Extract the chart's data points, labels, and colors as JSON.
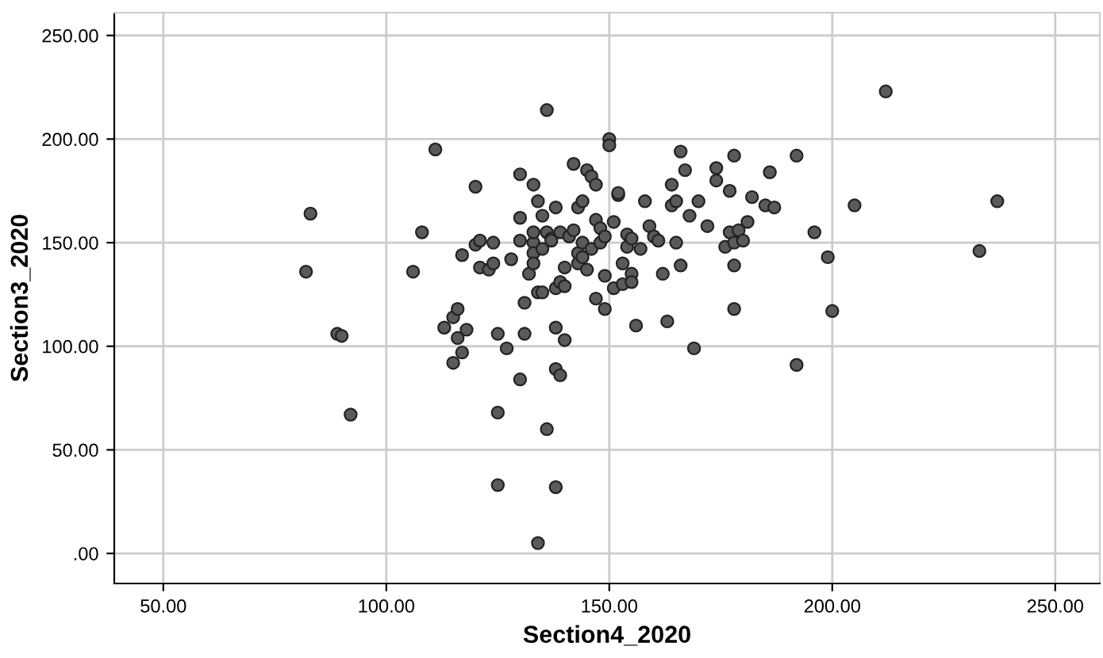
{
  "chart_data": {
    "type": "scatter",
    "xlabel": "Section4_2020",
    "ylabel": "Section3_2020",
    "x": [
      82,
      83,
      89,
      90,
      92,
      106,
      108,
      111,
      113,
      115,
      115,
      116,
      116,
      117,
      118,
      117,
      120,
      120,
      121,
      121,
      123,
      124,
      124,
      125,
      125,
      125,
      127,
      128,
      130,
      130,
      130,
      130,
      131,
      131,
      132,
      133,
      133,
      133,
      133,
      133,
      134,
      134,
      134,
      135,
      135,
      135,
      136,
      136,
      136,
      137,
      137,
      138,
      138,
      138,
      138,
      138,
      139,
      139,
      139,
      140,
      140,
      140,
      141,
      142,
      142,
      143,
      143,
      143,
      144,
      144,
      144,
      145,
      145,
      146,
      146,
      147,
      147,
      147,
      148,
      148,
      149,
      149,
      149,
      150,
      150,
      151,
      151,
      152,
      152,
      153,
      153,
      154,
      154,
      155,
      155,
      155,
      156,
      157,
      158,
      159,
      160,
      161,
      162,
      163,
      164,
      164,
      165,
      165,
      166,
      166,
      167,
      168,
      169,
      170,
      172,
      174,
      174,
      176,
      177,
      177,
      178,
      178,
      178,
      178,
      179,
      180,
      181,
      182,
      185,
      186,
      187,
      192,
      192,
      196,
      199,
      200,
      205,
      212,
      233,
      237
    ],
    "values": [
      136,
      164,
      106,
      105,
      67,
      136,
      155,
      195,
      109,
      92,
      114,
      118,
      104,
      97,
      108,
      144,
      149,
      177,
      138,
      151,
      137,
      150,
      140,
      106,
      68,
      33,
      99,
      142,
      162,
      151,
      183,
      84,
      121,
      106,
      135,
      150,
      178,
      155,
      145,
      140,
      170,
      126,
      5,
      163,
      147,
      126,
      214,
      60,
      155,
      152,
      151,
      32,
      128,
      89,
      109,
      167,
      155,
      131,
      86,
      138,
      103,
      129,
      153,
      188,
      156,
      167,
      145,
      140,
      170,
      150,
      143,
      185,
      137,
      147,
      182,
      161,
      178,
      123,
      157,
      150,
      134,
      118,
      153,
      200,
      197,
      160,
      128,
      173,
      174,
      140,
      130,
      154,
      148,
      152,
      135,
      131,
      110,
      147,
      170,
      158,
      153,
      151,
      135,
      112,
      178,
      168,
      150,
      170,
      194,
      139,
      185,
      163,
      99,
      170,
      158,
      186,
      180,
      148,
      155,
      175,
      192,
      139,
      118,
      150,
      156,
      151,
      160,
      172,
      168,
      184,
      167,
      192,
      91,
      155,
      143,
      117,
      168,
      223,
      146,
      170
    ],
    "color": "#5a5a5a",
    "marker": "circle",
    "grid": true,
    "xlim": [
      39,
      260
    ],
    "ylim": [
      -14.5,
      261
    ],
    "xticks": [
      {
        "value": 50,
        "label": "50.00"
      },
      {
        "value": 100,
        "label": "100.00"
      },
      {
        "value": 150,
        "label": "150.00"
      },
      {
        "value": 200,
        "label": "200.00"
      },
      {
        "value": 250,
        "label": "250.00"
      }
    ],
    "yticks": [
      {
        "value": 0,
        "label": ".00"
      },
      {
        "value": 50,
        "label": "50.00"
      },
      {
        "value": 100,
        "label": "100.00"
      },
      {
        "value": 150,
        "label": "150.00"
      },
      {
        "value": 200,
        "label": "200.00"
      },
      {
        "value": 250,
        "label": "250.00"
      }
    ]
  }
}
